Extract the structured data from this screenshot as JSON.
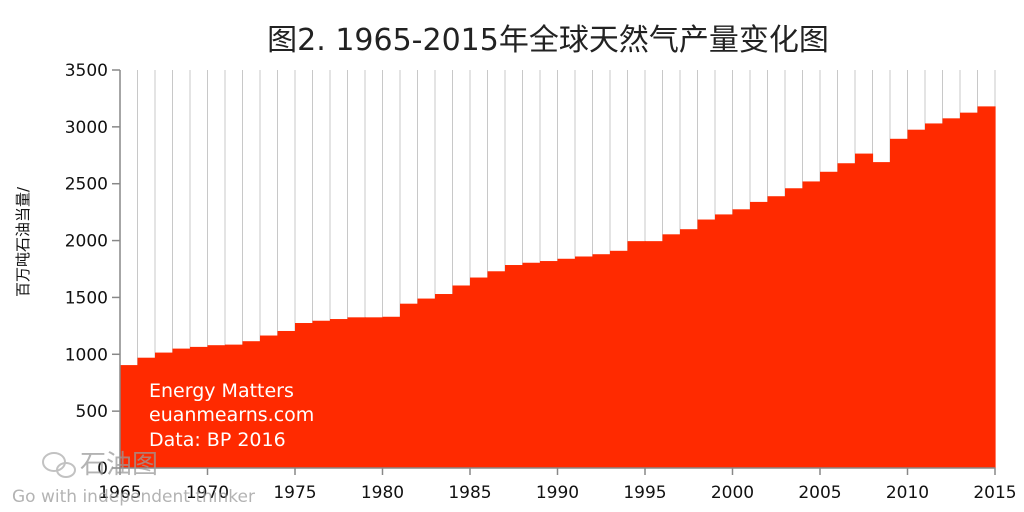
{
  "chart_data": {
    "type": "bar",
    "title": "图2. 1965-2015年全球天然气产量变化图",
    "ylabel": "百万吨石油当量/",
    "xlabel": "",
    "ylim": [
      0,
      3500
    ],
    "yticks": [
      0,
      500,
      1000,
      1500,
      2000,
      2500,
      3000,
      3500
    ],
    "xtick_labels": [
      "1965",
      "1970",
      "1975",
      "1980",
      "1985",
      "1990",
      "1995",
      "2000",
      "2005",
      "2010",
      "2015"
    ],
    "grid": "vertical",
    "bar_color": "#ff2a00",
    "categories": [
      1965,
      1966,
      1967,
      1968,
      1969,
      1970,
      1971,
      1972,
      1973,
      1974,
      1975,
      1976,
      1977,
      1978,
      1979,
      1980,
      1981,
      1982,
      1983,
      1984,
      1985,
      1986,
      1987,
      1988,
      1989,
      1990,
      1991,
      1992,
      1993,
      1994,
      1995,
      1996,
      1997,
      1998,
      1999,
      2000,
      2001,
      2002,
      2003,
      2004,
      2005,
      2006,
      2007,
      2008,
      2009,
      2010,
      2011,
      2012,
      2013,
      2014,
      2015
    ],
    "values": [
      905,
      970,
      1015,
      1050,
      1065,
      1080,
      1085,
      1115,
      1165,
      1205,
      1275,
      1295,
      1310,
      1325,
      1325,
      1330,
      1445,
      1490,
      1530,
      1605,
      1675,
      1730,
      1785,
      1805,
      1820,
      1840,
      1860,
      1880,
      1910,
      1995,
      1995,
      2055,
      2100,
      2185,
      2230,
      2275,
      2340,
      2390,
      2460,
      2520,
      2605,
      2680,
      2765,
      2690,
      2895,
      2975,
      3030,
      3075,
      3125,
      3180,
      3200
    ],
    "annotations": [
      "Energy Matters",
      "euanmearns.com",
      "Data: BP 2016"
    ]
  },
  "watermark": {
    "logo_text": "石油图",
    "tagline": "Go with independent thinker"
  }
}
